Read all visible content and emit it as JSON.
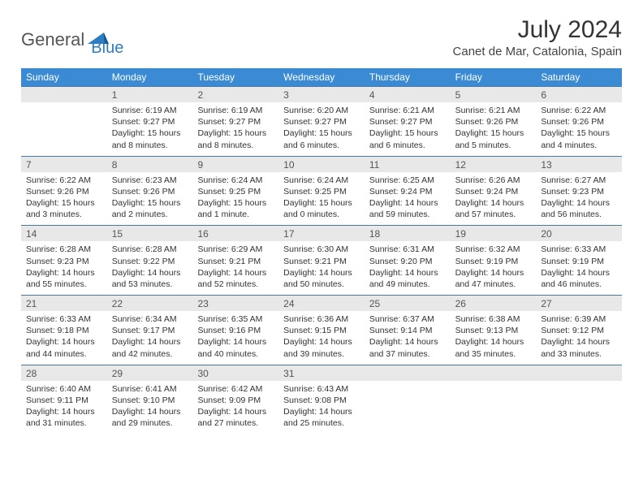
{
  "logo": {
    "part1": "General",
    "part2": "Blue"
  },
  "title": "July 2024",
  "location": "Canet de Mar, Catalonia, Spain",
  "colors": {
    "header_bg": "#3b8bd4",
    "header_text": "#ffffff",
    "daynum_bg": "#e8e8e8",
    "week_border": "#4a79a5",
    "logo_blue": "#2d7dc3",
    "logo_gray": "#555555"
  },
  "weekdays": [
    "Sunday",
    "Monday",
    "Tuesday",
    "Wednesday",
    "Thursday",
    "Friday",
    "Saturday"
  ],
  "weeks": [
    [
      {
        "num": "",
        "lines": []
      },
      {
        "num": "1",
        "lines": [
          "Sunrise: 6:19 AM",
          "Sunset: 9:27 PM",
          "Daylight: 15 hours",
          "and 8 minutes."
        ]
      },
      {
        "num": "2",
        "lines": [
          "Sunrise: 6:19 AM",
          "Sunset: 9:27 PM",
          "Daylight: 15 hours",
          "and 8 minutes."
        ]
      },
      {
        "num": "3",
        "lines": [
          "Sunrise: 6:20 AM",
          "Sunset: 9:27 PM",
          "Daylight: 15 hours",
          "and 6 minutes."
        ]
      },
      {
        "num": "4",
        "lines": [
          "Sunrise: 6:21 AM",
          "Sunset: 9:27 PM",
          "Daylight: 15 hours",
          "and 6 minutes."
        ]
      },
      {
        "num": "5",
        "lines": [
          "Sunrise: 6:21 AM",
          "Sunset: 9:26 PM",
          "Daylight: 15 hours",
          "and 5 minutes."
        ]
      },
      {
        "num": "6",
        "lines": [
          "Sunrise: 6:22 AM",
          "Sunset: 9:26 PM",
          "Daylight: 15 hours",
          "and 4 minutes."
        ]
      }
    ],
    [
      {
        "num": "7",
        "lines": [
          "Sunrise: 6:22 AM",
          "Sunset: 9:26 PM",
          "Daylight: 15 hours",
          "and 3 minutes."
        ]
      },
      {
        "num": "8",
        "lines": [
          "Sunrise: 6:23 AM",
          "Sunset: 9:26 PM",
          "Daylight: 15 hours",
          "and 2 minutes."
        ]
      },
      {
        "num": "9",
        "lines": [
          "Sunrise: 6:24 AM",
          "Sunset: 9:25 PM",
          "Daylight: 15 hours",
          "and 1 minute."
        ]
      },
      {
        "num": "10",
        "lines": [
          "Sunrise: 6:24 AM",
          "Sunset: 9:25 PM",
          "Daylight: 15 hours",
          "and 0 minutes."
        ]
      },
      {
        "num": "11",
        "lines": [
          "Sunrise: 6:25 AM",
          "Sunset: 9:24 PM",
          "Daylight: 14 hours",
          "and 59 minutes."
        ]
      },
      {
        "num": "12",
        "lines": [
          "Sunrise: 6:26 AM",
          "Sunset: 9:24 PM",
          "Daylight: 14 hours",
          "and 57 minutes."
        ]
      },
      {
        "num": "13",
        "lines": [
          "Sunrise: 6:27 AM",
          "Sunset: 9:23 PM",
          "Daylight: 14 hours",
          "and 56 minutes."
        ]
      }
    ],
    [
      {
        "num": "14",
        "lines": [
          "Sunrise: 6:28 AM",
          "Sunset: 9:23 PM",
          "Daylight: 14 hours",
          "and 55 minutes."
        ]
      },
      {
        "num": "15",
        "lines": [
          "Sunrise: 6:28 AM",
          "Sunset: 9:22 PM",
          "Daylight: 14 hours",
          "and 53 minutes."
        ]
      },
      {
        "num": "16",
        "lines": [
          "Sunrise: 6:29 AM",
          "Sunset: 9:21 PM",
          "Daylight: 14 hours",
          "and 52 minutes."
        ]
      },
      {
        "num": "17",
        "lines": [
          "Sunrise: 6:30 AM",
          "Sunset: 9:21 PM",
          "Daylight: 14 hours",
          "and 50 minutes."
        ]
      },
      {
        "num": "18",
        "lines": [
          "Sunrise: 6:31 AM",
          "Sunset: 9:20 PM",
          "Daylight: 14 hours",
          "and 49 minutes."
        ]
      },
      {
        "num": "19",
        "lines": [
          "Sunrise: 6:32 AM",
          "Sunset: 9:19 PM",
          "Daylight: 14 hours",
          "and 47 minutes."
        ]
      },
      {
        "num": "20",
        "lines": [
          "Sunrise: 6:33 AM",
          "Sunset: 9:19 PM",
          "Daylight: 14 hours",
          "and 46 minutes."
        ]
      }
    ],
    [
      {
        "num": "21",
        "lines": [
          "Sunrise: 6:33 AM",
          "Sunset: 9:18 PM",
          "Daylight: 14 hours",
          "and 44 minutes."
        ]
      },
      {
        "num": "22",
        "lines": [
          "Sunrise: 6:34 AM",
          "Sunset: 9:17 PM",
          "Daylight: 14 hours",
          "and 42 minutes."
        ]
      },
      {
        "num": "23",
        "lines": [
          "Sunrise: 6:35 AM",
          "Sunset: 9:16 PM",
          "Daylight: 14 hours",
          "and 40 minutes."
        ]
      },
      {
        "num": "24",
        "lines": [
          "Sunrise: 6:36 AM",
          "Sunset: 9:15 PM",
          "Daylight: 14 hours",
          "and 39 minutes."
        ]
      },
      {
        "num": "25",
        "lines": [
          "Sunrise: 6:37 AM",
          "Sunset: 9:14 PM",
          "Daylight: 14 hours",
          "and 37 minutes."
        ]
      },
      {
        "num": "26",
        "lines": [
          "Sunrise: 6:38 AM",
          "Sunset: 9:13 PM",
          "Daylight: 14 hours",
          "and 35 minutes."
        ]
      },
      {
        "num": "27",
        "lines": [
          "Sunrise: 6:39 AM",
          "Sunset: 9:12 PM",
          "Daylight: 14 hours",
          "and 33 minutes."
        ]
      }
    ],
    [
      {
        "num": "28",
        "lines": [
          "Sunrise: 6:40 AM",
          "Sunset: 9:11 PM",
          "Daylight: 14 hours",
          "and 31 minutes."
        ]
      },
      {
        "num": "29",
        "lines": [
          "Sunrise: 6:41 AM",
          "Sunset: 9:10 PM",
          "Daylight: 14 hours",
          "and 29 minutes."
        ]
      },
      {
        "num": "30",
        "lines": [
          "Sunrise: 6:42 AM",
          "Sunset: 9:09 PM",
          "Daylight: 14 hours",
          "and 27 minutes."
        ]
      },
      {
        "num": "31",
        "lines": [
          "Sunrise: 6:43 AM",
          "Sunset: 9:08 PM",
          "Daylight: 14 hours",
          "and 25 minutes."
        ]
      },
      {
        "num": "",
        "lines": []
      },
      {
        "num": "",
        "lines": []
      },
      {
        "num": "",
        "lines": []
      }
    ]
  ]
}
